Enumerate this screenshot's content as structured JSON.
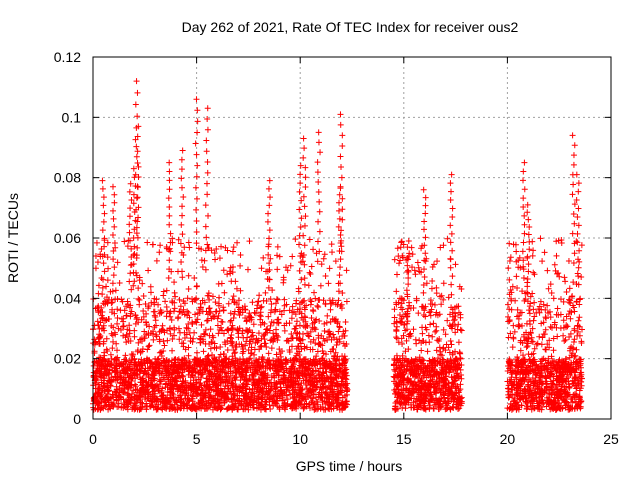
{
  "chart_data": {
    "type": "scatter",
    "title": "Day 262 of 2021, Rate Of TEC Index for receiver ous2",
    "xlabel": "GPS time / hours",
    "ylabel": "ROTI / TECUs",
    "xlim": [
      0,
      25
    ],
    "ylim": [
      0,
      0.12
    ],
    "xticks": [
      "0",
      "5",
      "10",
      "15",
      "20",
      "25"
    ],
    "yticks": [
      "0",
      "0.02",
      "0.04",
      "0.06",
      "0.08",
      "0.1",
      "0.12"
    ],
    "grid": true,
    "marker": "+",
    "color": "#ff0000",
    "segments": [
      {
        "x_start": 0.0,
        "x_end": 12.3
      },
      {
        "x_start": 14.5,
        "x_end": 17.8
      },
      {
        "x_start": 20.0,
        "x_end": 23.6
      }
    ],
    "spikes": [
      {
        "x": 0.5,
        "y": 0.079
      },
      {
        "x": 1.0,
        "y": 0.077
      },
      {
        "x": 1.8,
        "y": 0.078
      },
      {
        "x": 2.0,
        "y": 0.083
      },
      {
        "x": 2.1,
        "y": 0.112
      },
      {
        "x": 2.15,
        "y": 0.097
      },
      {
        "x": 3.7,
        "y": 0.085
      },
      {
        "x": 4.3,
        "y": 0.089
      },
      {
        "x": 5.0,
        "y": 0.106
      },
      {
        "x": 5.5,
        "y": 0.103
      },
      {
        "x": 8.5,
        "y": 0.079
      },
      {
        "x": 10.2,
        "y": 0.093
      },
      {
        "x": 10.0,
        "y": 0.084
      },
      {
        "x": 10.9,
        "y": 0.095
      },
      {
        "x": 12.0,
        "y": 0.101
      },
      {
        "x": 11.9,
        "y": 0.077
      },
      {
        "x": 15.2,
        "y": 0.059
      },
      {
        "x": 16.0,
        "y": 0.076
      },
      {
        "x": 17.3,
        "y": 0.081
      },
      {
        "x": 20.8,
        "y": 0.085
      },
      {
        "x": 21.0,
        "y": 0.071
      },
      {
        "x": 23.2,
        "y": 0.094
      },
      {
        "x": 23.4,
        "y": 0.081
      }
    ]
  }
}
